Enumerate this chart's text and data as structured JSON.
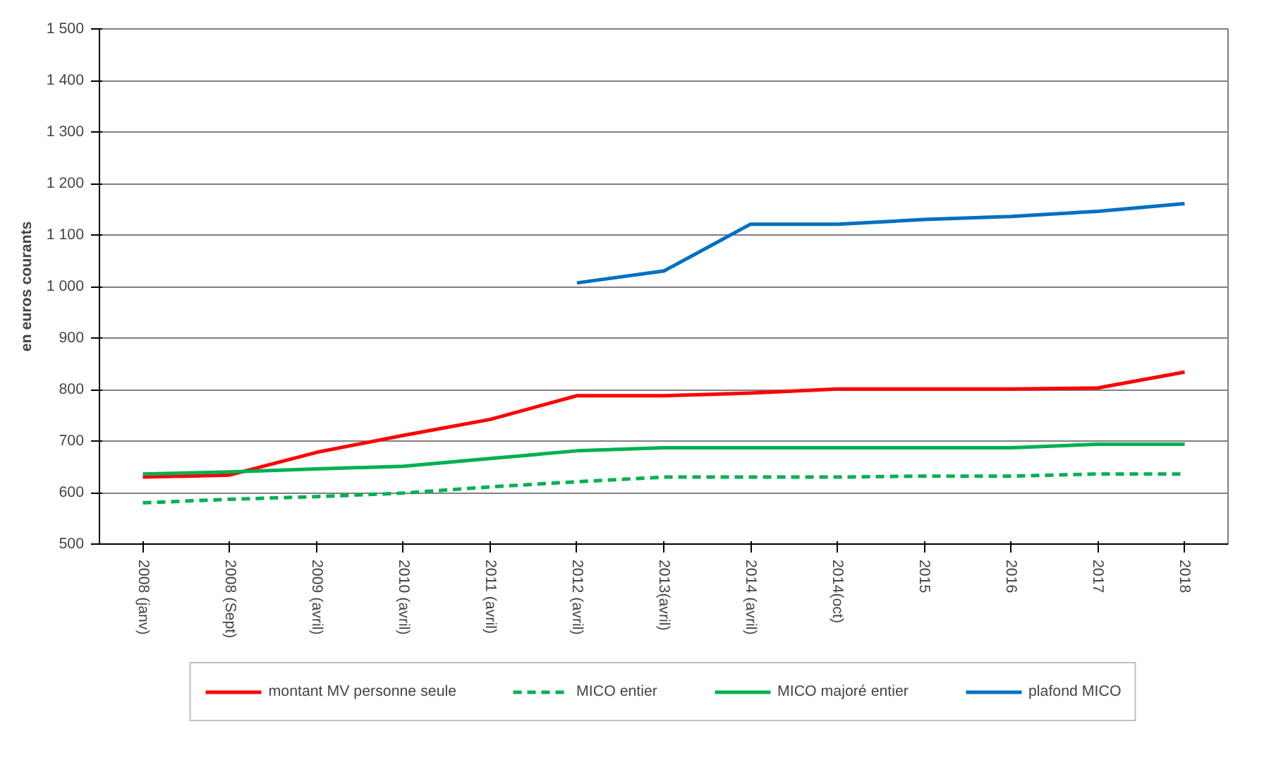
{
  "chart_data": {
    "type": "line",
    "ylabel": "en euros courants",
    "categories": [
      "2008 (janv)",
      "2008 (Sept)",
      "2009 (avril)",
      "2010 (avril)",
      "2011 (avril)",
      "2012 (avril)",
      "2013(avril)",
      "2014 (avril)",
      "2014(oct)",
      "2015",
      "2016",
      "2017",
      "2018"
    ],
    "series": [
      {
        "name": "montant MV personne seule",
        "color": "#ff0000",
        "line_style": "solid",
        "values": [
          630,
          634,
          678,
          711,
          742,
          788,
          788,
          793,
          801,
          801,
          801,
          803,
          834
        ]
      },
      {
        "name": "MICO entier",
        "color": "#00b050",
        "line_style": "dashed",
        "values": [
          580,
          587,
          592,
          599,
          611,
          621,
          630,
          630,
          630,
          632,
          632,
          636,
          636
        ]
      },
      {
        "name": "MICO majoré entier",
        "color": "#00b050",
        "line_style": "solid",
        "values": [
          636,
          640,
          646,
          651,
          666,
          681,
          687,
          687,
          687,
          687,
          687,
          694,
          694
        ]
      },
      {
        "name": "plafond MICO",
        "color": "#0070c0",
        "line_style": "solid",
        "values": [
          null,
          null,
          null,
          null,
          null,
          1007,
          1030,
          1121,
          1121,
          1130,
          1136,
          1146,
          1161
        ]
      }
    ],
    "ylim": [
      500,
      1500
    ],
    "yticks": [
      {
        "value": 500,
        "label": "500"
      },
      {
        "value": 600,
        "label": "600"
      },
      {
        "value": 700,
        "label": "700"
      },
      {
        "value": 800,
        "label": "800"
      },
      {
        "value": 900,
        "label": "900"
      },
      {
        "value": 1000,
        "label": "1 000"
      },
      {
        "value": 1100,
        "label": "1 100"
      },
      {
        "value": 1200,
        "label": "1 200"
      },
      {
        "value": 1300,
        "label": "1 300"
      },
      {
        "value": 1400,
        "label": "1 400"
      },
      {
        "value": 1500,
        "label": "1 500"
      }
    ],
    "grid": "y",
    "legend": "bottom",
    "marker": "none"
  }
}
